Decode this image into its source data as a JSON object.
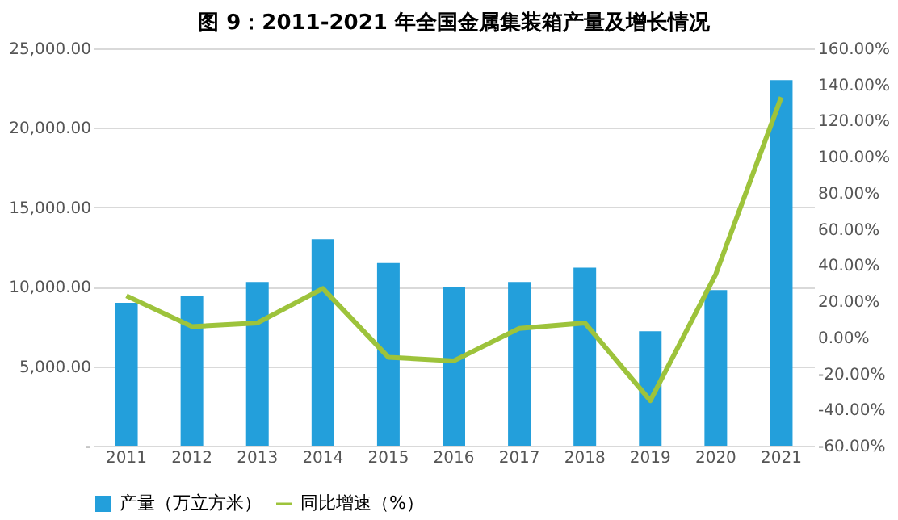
{
  "chart_data": {
    "type": "bar",
    "title": "图 9：2011-2021 年全国金属集装箱产量及增长情况",
    "categories": [
      "2011",
      "2012",
      "2013",
      "2014",
      "2015",
      "2016",
      "2017",
      "2018",
      "2019",
      "2020",
      "2021"
    ],
    "series": [
      {
        "name": "产量（万立方米）",
        "color": "#239fdb",
        "values": [
          9000,
          9400,
          10300,
          13000,
          11500,
          10000,
          10300,
          11200,
          7200,
          9800,
          23000
        ]
      },
      {
        "name": "同比增速（%）",
        "type": "line",
        "axis": "y2",
        "color": "#9dc33b",
        "values": [
          23,
          6,
          8,
          27,
          -11,
          -13,
          5,
          8,
          -35,
          35,
          133
        ]
      }
    ],
    "ylim": [
      0,
      25000
    ],
    "yticks": [
      {
        "value": 0,
        "label": "-"
      },
      {
        "value": 5000,
        "label": "5,000.00"
      },
      {
        "value": 10000,
        "label": "10,000.00"
      },
      {
        "value": 15000,
        "label": "15,000.00"
      },
      {
        "value": 20000,
        "label": "20,000.00"
      },
      {
        "value": 25000,
        "label": "25,000.00"
      }
    ],
    "y2lim": [
      -60,
      160
    ],
    "y2ticks": [
      {
        "value": -60,
        "label": "-60.00%"
      },
      {
        "value": -40,
        "label": "-40.00%"
      },
      {
        "value": -20,
        "label": "-20.00%"
      },
      {
        "value": 0,
        "label": "0.00%"
      },
      {
        "value": 20,
        "label": "20.00%"
      },
      {
        "value": 40,
        "label": "40.00%"
      },
      {
        "value": 60,
        "label": "60.00%"
      },
      {
        "value": 80,
        "label": "80.00%"
      },
      {
        "value": 100,
        "label": "100.00%"
      },
      {
        "value": 120,
        "label": "120.00%"
      },
      {
        "value": 140,
        "label": "140.00%"
      },
      {
        "value": 160,
        "label": "160.00%"
      }
    ],
    "grid": "y",
    "legend": "bottom",
    "marker": "none",
    "line_style": "solid"
  }
}
